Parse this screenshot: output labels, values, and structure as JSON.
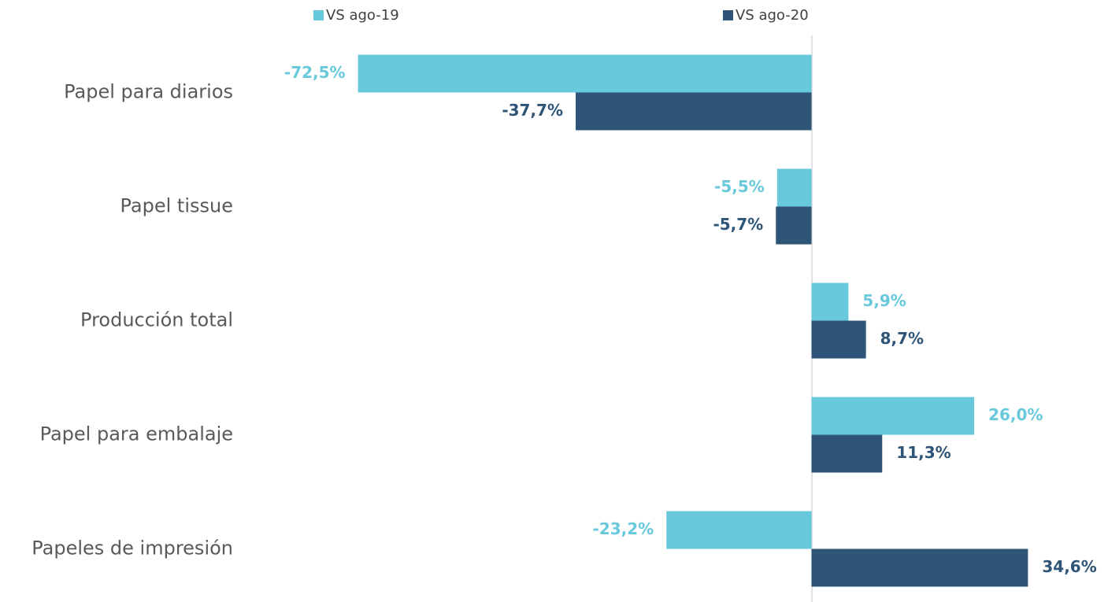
{
  "chart_data": {
    "type": "barh",
    "categories": [
      "Papel para diarios",
      "Papel tissue",
      "Producción total",
      "Papel para embalaje",
      "Papeles de impresión"
    ],
    "series": [
      {
        "name": "VS ago-19",
        "color": "#69c9dc",
        "values": [
          -72.5,
          -5.5,
          5.9,
          26.0,
          -23.2
        ],
        "value_labels": [
          "-72,5%",
          "-5,5%",
          "5,9%",
          "26,0%",
          "-23,2%"
        ]
      },
      {
        "name": "VS ago-20",
        "color": "#2e5577",
        "values": [
          -37.7,
          -5.7,
          8.7,
          11.3,
          34.6
        ],
        "value_labels": [
          "-37,7%",
          "-5,7%",
          "8,7%",
          "11,3%",
          "34,6%"
        ]
      }
    ],
    "xlim": [
      -80,
      45
    ],
    "legend": "top"
  }
}
